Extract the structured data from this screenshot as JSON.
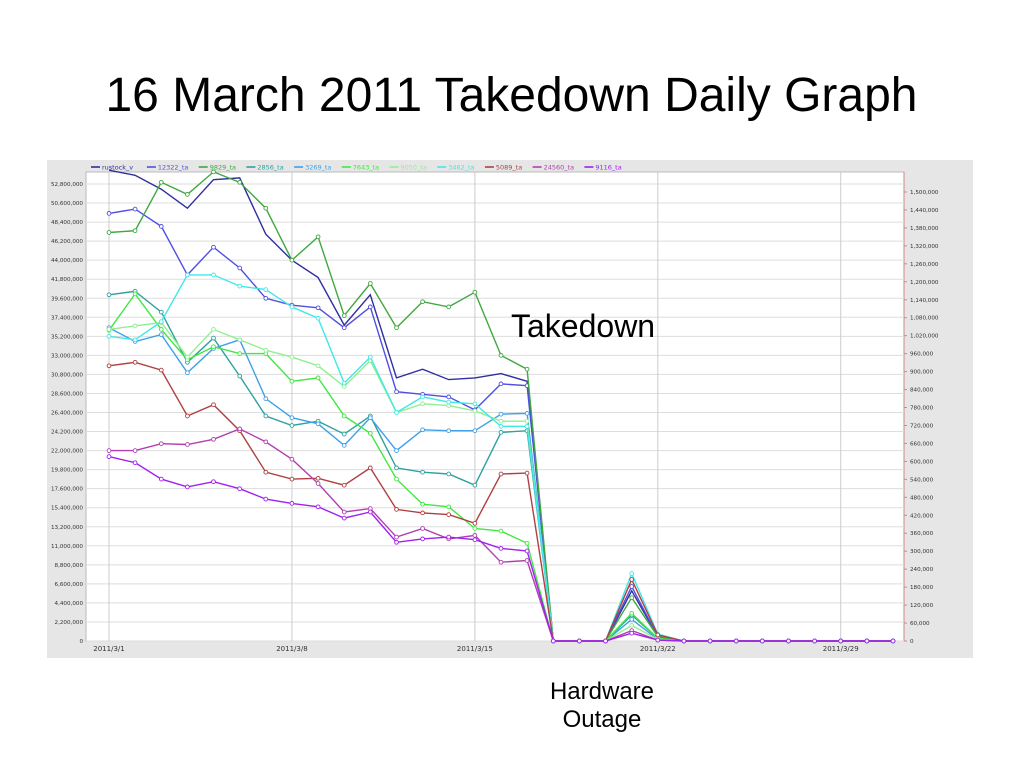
{
  "slide": {
    "title": "16 March 2011 Takedown Daily Graph",
    "annotations": {
      "takedown": "Takedown",
      "hardware_line1": "Hardware",
      "hardware_line2": "Outage"
    }
  },
  "chart_data": {
    "type": "line",
    "title": "",
    "xlabel": "",
    "ylabel": "",
    "grid": true,
    "legend_position": "top-left",
    "x": [
      1,
      2,
      3,
      4,
      5,
      6,
      7,
      8,
      9,
      10,
      11,
      12,
      13,
      14,
      15,
      16,
      17,
      18,
      19,
      20,
      21,
      22,
      23,
      24,
      25,
      26,
      27,
      28,
      29,
      30,
      31
    ],
    "x_tick_positions": [
      1,
      8,
      15,
      22,
      29
    ],
    "x_tick_labels": [
      "2011/3/1",
      "2011/3/8",
      "2011/3/15",
      "2011/3/22",
      "2011/3/29"
    ],
    "y_left_ticks": [
      "0",
      "2,200,000",
      "4,400,000",
      "6,600,000",
      "8,800,000",
      "11,000,000",
      "13,200,000",
      "15,400,000",
      "17,600,000",
      "19,800,000",
      "22,000,000",
      "24,200,000",
      "26,400,000",
      "28,600,000",
      "30,800,000",
      "33,000,000",
      "35,200,000",
      "37,400,000",
      "39,600,000",
      "41,800,000",
      "44,000,000",
      "46,200,000",
      "48,400,000",
      "50,600,000",
      "52,800,000"
    ],
    "y_right_ticks": [
      "0",
      "60,000",
      "120,000",
      "180,000",
      "240,000",
      "300,000",
      "360,000",
      "420,000",
      "480,000",
      "540,000",
      "600,000",
      "660,000",
      "720,000",
      "780,000",
      "840,000",
      "900,000",
      "960,000",
      "1,020,000",
      "1,080,000",
      "1,140,000",
      "1,200,000",
      "1,260,000",
      "1,320,000",
      "1,380,000",
      "1,440,000",
      "1,500,000"
    ],
    "y_left_range": [
      0,
      55000000
    ],
    "series": [
      {
        "name": "rustock_v",
        "color": "#2f2fa0",
        "markers": false,
        "values": [
          54400000,
          53800000,
          52200000,
          50000000,
          53300000,
          53500000,
          47000000,
          44000000,
          42000000,
          36500000,
          40000000,
          30400000,
          31400000,
          30200000,
          30400000,
          30900000,
          30000000,
          0,
          0,
          0,
          5800000,
          500000,
          0,
          0,
          0,
          0,
          0,
          0,
          0,
          0,
          0
        ]
      },
      {
        "name": "12322_ta",
        "color": "#5050e0",
        "markers": true,
        "values": [
          49400000,
          49900000,
          47900000,
          42300000,
          45500000,
          43100000,
          39600000,
          38800000,
          38500000,
          36200000,
          38600000,
          28800000,
          28500000,
          28200000,
          26700000,
          29700000,
          29500000,
          0,
          0,
          0,
          6300000,
          500000,
          0,
          0,
          0,
          0,
          0,
          0,
          0,
          0,
          0
        ]
      },
      {
        "name": "9829_ta",
        "color": "#3fa83f",
        "markers": true,
        "values": [
          47200000,
          47400000,
          53000000,
          51600000,
          54200000,
          53000000,
          50000000,
          44000000,
          46700000,
          37600000,
          41300000,
          36200000,
          39200000,
          38600000,
          40300000,
          33000000,
          31400000,
          0,
          0,
          0,
          5000000,
          500000,
          0,
          0,
          0,
          0,
          0,
          0,
          0,
          0,
          0
        ]
      },
      {
        "name": "2856_ta",
        "color": "#30a0a0",
        "markers": true,
        "values": [
          40000000,
          40400000,
          38000000,
          32200000,
          35000000,
          30600000,
          26000000,
          24900000,
          25400000,
          23900000,
          26000000,
          20000000,
          19500000,
          19300000,
          18000000,
          24100000,
          24300000,
          0,
          0,
          0,
          3000000,
          300000,
          0,
          0,
          0,
          0,
          0,
          0,
          0,
          0,
          0
        ]
      },
      {
        "name": "3269_ta",
        "color": "#40a0e8",
        "markers": true,
        "values": [
          36200000,
          34600000,
          35400000,
          31000000,
          33800000,
          34800000,
          28000000,
          25800000,
          25100000,
          22600000,
          25800000,
          22000000,
          24400000,
          24300000,
          24300000,
          26200000,
          26300000,
          0,
          0,
          0,
          2500000,
          200000,
          0,
          0,
          0,
          0,
          0,
          0,
          0,
          0,
          0
        ]
      },
      {
        "name": "7643_ta",
        "color": "#40e840",
        "markers": true,
        "values": [
          35900000,
          40100000,
          36000000,
          32500000,
          34000000,
          33200000,
          33200000,
          30000000,
          30400000,
          26000000,
          24000000,
          18700000,
          15800000,
          15500000,
          13000000,
          12700000,
          11300000,
          0,
          0,
          0,
          3200000,
          300000,
          0,
          0,
          0,
          0,
          0,
          0,
          0,
          0,
          0
        ]
      },
      {
        "name": "9050_ta",
        "color": "#90f090",
        "markers": true,
        "values": [
          36000000,
          36400000,
          36800000,
          32800000,
          36000000,
          34800000,
          33600000,
          32800000,
          31800000,
          29400000,
          32400000,
          26400000,
          27400000,
          27200000,
          26600000,
          25400000,
          25400000,
          0,
          0,
          0,
          1800000,
          200000,
          0,
          0,
          0,
          0,
          0,
          0,
          0,
          0,
          0
        ]
      },
      {
        "name": "3462_ta",
        "color": "#40e8e8",
        "markers": true,
        "values": [
          35200000,
          34800000,
          36900000,
          42300000,
          42300000,
          41000000,
          40600000,
          38600000,
          37300000,
          29800000,
          32800000,
          26400000,
          28200000,
          27600000,
          27400000,
          24800000,
          24800000,
          0,
          0,
          0,
          7800000,
          800000,
          0,
          0,
          0,
          0,
          0,
          0,
          0,
          0,
          0
        ]
      },
      {
        "name": "5089_ta",
        "color": "#b04040",
        "markers": true,
        "values": [
          31800000,
          32200000,
          31300000,
          26000000,
          27300000,
          24300000,
          19500000,
          18700000,
          18800000,
          18000000,
          20000000,
          15200000,
          14800000,
          14600000,
          13600000,
          19300000,
          19400000,
          0,
          0,
          0,
          7100000,
          700000,
          0,
          0,
          0,
          0,
          0,
          0,
          0,
          0,
          0
        ]
      },
      {
        "name": "24560_ta",
        "color": "#b040b0",
        "markers": true,
        "values": [
          22000000,
          22000000,
          22800000,
          22700000,
          23300000,
          24500000,
          23000000,
          21000000,
          18200000,
          14900000,
          15300000,
          12000000,
          13000000,
          11800000,
          12200000,
          9100000,
          9300000,
          0,
          0,
          0,
          1200000,
          100000,
          0,
          0,
          0,
          0,
          0,
          0,
          0,
          0,
          0
        ]
      },
      {
        "name": "9116_ta",
        "color": "#a020f0",
        "markers": true,
        "values": [
          21300000,
          20600000,
          18700000,
          17800000,
          18400000,
          17600000,
          16400000,
          15900000,
          15500000,
          14200000,
          14900000,
          11400000,
          11800000,
          12000000,
          11700000,
          10700000,
          10400000,
          0,
          0,
          0,
          900000,
          100000,
          0,
          0,
          0,
          0,
          0,
          0,
          0,
          0,
          0
        ]
      }
    ]
  }
}
